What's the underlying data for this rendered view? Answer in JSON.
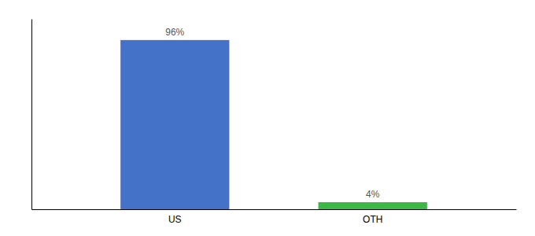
{
  "chart_data": {
    "type": "bar",
    "categories": [
      "US",
      "OTH"
    ],
    "values": [
      96,
      4
    ],
    "value_labels": [
      "96%",
      "4%"
    ],
    "colors": [
      "#4472c9",
      "#3cb844"
    ],
    "ylim": [
      0,
      108
    ],
    "data_labels": true,
    "tick_labels": "x",
    "grid": false
  }
}
